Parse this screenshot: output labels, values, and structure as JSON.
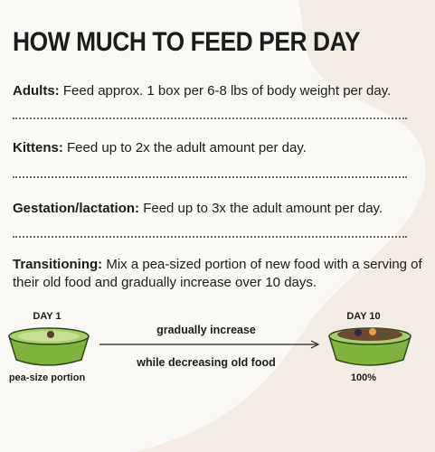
{
  "header": {
    "title": "HOW MUCH TO FEED PER DAY"
  },
  "sections": [
    {
      "label": "Adults:",
      "text": "Feed approx. 1 box per 6-8 lbs of body weight per day."
    },
    {
      "label": "Kittens:",
      "text": "Feed up to 2x the adult amount per day."
    },
    {
      "label": "Gestation/lactation:",
      "text": "Feed up to 3x the adult amount per day."
    },
    {
      "label": "Transitioning:",
      "text": "Mix a pea-sized portion of new food with a serving of their old food and gradually increase over 10 days."
    }
  ],
  "diagram": {
    "start": {
      "day": "DAY 1",
      "caption": "pea-size portion"
    },
    "arrow": {
      "top": "gradually increase",
      "bottom": "while decreasing old food"
    },
    "end": {
      "day": "DAY 10",
      "caption": "100%"
    }
  }
}
